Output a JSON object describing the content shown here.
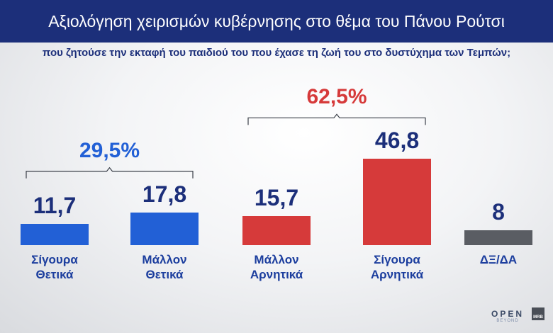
{
  "header": {
    "title": "Αξιολόγηση χειρισμών κυβέρνησης στο θέμα του Πάνου Ρούτσι",
    "subtitle": "που ζητούσε την εκταφή του παιδιού του που έχασε τη ζωή του στο δυστύχημα των Τεμπών;"
  },
  "chart_data": {
    "type": "bar",
    "categories": [
      [
        "Σίγουρα",
        "Θετικά"
      ],
      [
        "Μάλλον",
        "Θετικά"
      ],
      [
        "Μάλλον",
        "Αρνητικά"
      ],
      [
        "Σίγουρα",
        "Αρνητικά"
      ],
      [
        "ΔΞ/ΔΑ"
      ]
    ],
    "values": [
      11.7,
      17.8,
      15.7,
      46.8,
      8
    ],
    "value_labels": [
      "11,7",
      "17,8",
      "15,7",
      "46,8",
      "8"
    ],
    "colors": [
      "#2260d6",
      "#2260d6",
      "#d63a3a",
      "#d63a3a",
      "#5a5d63"
    ],
    "groups": [
      {
        "label": "29,5%",
        "color": "#2260d6",
        "from": 0,
        "to": 1
      },
      {
        "label": "62,5%",
        "color": "#d63a3a",
        "from": 2,
        "to": 3
      }
    ],
    "ylim": [
      0,
      50
    ]
  },
  "branding": {
    "logo_text": "OPEN",
    "logo_sub": "BEYOND",
    "badge_text": "MRB"
  }
}
